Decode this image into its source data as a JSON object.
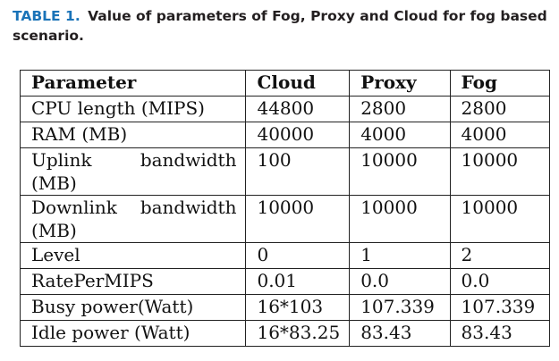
{
  "caption": {
    "label": "TABLE 1.",
    "text": "Value of parameters of Fog, Proxy and Cloud for fog based scenario."
  },
  "table": {
    "headers": [
      "Parameter",
      "Cloud",
      "Proxy",
      "Fog"
    ],
    "rows": [
      {
        "param": "CPU length (MIPS)",
        "cloud": "44800",
        "proxy": "2800",
        "fog": "2800"
      },
      {
        "param": "RAM (MB)",
        "cloud": "40000",
        "proxy": "4000",
        "fog": "4000"
      },
      {
        "param_line1_a": "Uplink",
        "param_line1_b": "bandwidth",
        "param_line2": "(MB)",
        "cloud": "100",
        "proxy": "10000",
        "fog": "10000"
      },
      {
        "param_line1_a": "Downlink",
        "param_line1_b": "bandwidth",
        "param_line2": "(MB)",
        "cloud": "10000",
        "proxy": "10000",
        "fog": "10000"
      },
      {
        "param": "Level",
        "cloud": "0",
        "proxy": "1",
        "fog": "2"
      },
      {
        "param": "RatePerMIPS",
        "cloud": "0.01",
        "proxy": "0.0",
        "fog": "0.0"
      },
      {
        "param": "Busy power(Watt)",
        "cloud": "16*103",
        "proxy": "107.339",
        "fog": "107.339"
      },
      {
        "param": "Idle power (Watt)",
        "cloud": "16*83.25",
        "proxy": "83.43",
        "fog": "83.43"
      }
    ]
  }
}
